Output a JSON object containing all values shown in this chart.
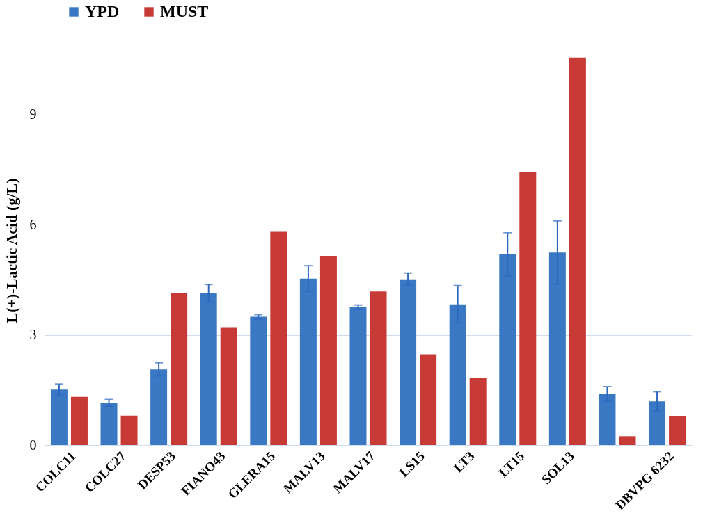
{
  "chart_data": {
    "type": "bar",
    "ylabel": "L(+)-Lactic Acid (g/L)",
    "categories": [
      "COLC11",
      "COLC27",
      "DESP53",
      "FIANO43",
      "GLERA15",
      "MALV13",
      "MALV17",
      "LS15",
      "LT3",
      "LT15",
      "SOL13",
      null,
      "DBVPG 6232"
    ],
    "series": [
      {
        "name": "YPD",
        "color": "#3a78c4",
        "values": [
          1.51,
          1.15,
          2.06,
          4.13,
          3.49,
          4.53,
          3.75,
          4.51,
          3.83,
          5.19,
          5.24,
          1.39,
          1.19
        ],
        "errors": [
          0.15,
          0.09,
          0.18,
          0.24,
          0.06,
          0.35,
          0.06,
          0.17,
          0.51,
          0.59,
          0.86,
          0.2,
          0.26
        ]
      },
      {
        "name": "MUST",
        "color": "#c83a36",
        "values": [
          1.31,
          0.8,
          4.13,
          3.19,
          5.82,
          5.15,
          4.18,
          2.47,
          1.83,
          7.43,
          10.55,
          0.24,
          0.78
        ]
      }
    ],
    "ylim": [
      0,
      10.6
    ],
    "yticks": [
      0,
      3,
      6,
      9
    ],
    "grid": "y",
    "legend": "top left"
  }
}
